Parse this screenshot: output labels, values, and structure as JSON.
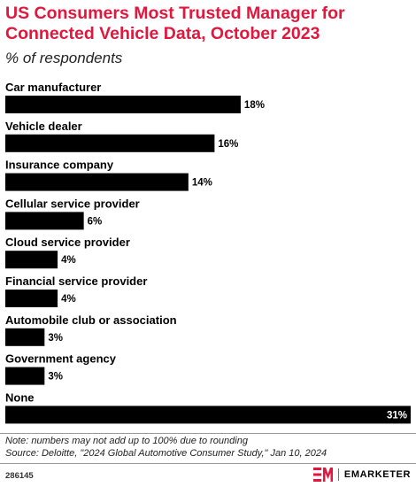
{
  "chart_data": {
    "type": "bar",
    "orientation": "horizontal",
    "title": "US Consumers Most Trusted Manager for Connected Vehicle Data, October 2023",
    "subtitle": "% of respondents",
    "categories": [
      "Car manufacturer",
      "Vehicle dealer",
      "Insurance company",
      "Cellular service provider",
      "Cloud service provider",
      "Financial service provider",
      "Automobile club or association",
      "Government agency",
      "None"
    ],
    "values": [
      18,
      16,
      14,
      6,
      4,
      4,
      3,
      3,
      31
    ],
    "value_labels": [
      "18%",
      "16%",
      "14%",
      "6%",
      "4%",
      "4%",
      "3%",
      "3%",
      "31%"
    ],
    "xlim": [
      0,
      31
    ],
    "bar_color": "#000000",
    "grid": false,
    "legend": "none"
  },
  "footer": {
    "note": "Note: numbers may not add up to 100% due to rounding",
    "source": "Source: Deloitte, \"2024 Global Automotive Consumer Study,\" Jan 10, 2024",
    "chart_id": "286145",
    "brand": "EMARKETER",
    "brand_icon": "em-logo-icon",
    "accent_color": "#e2173d"
  }
}
